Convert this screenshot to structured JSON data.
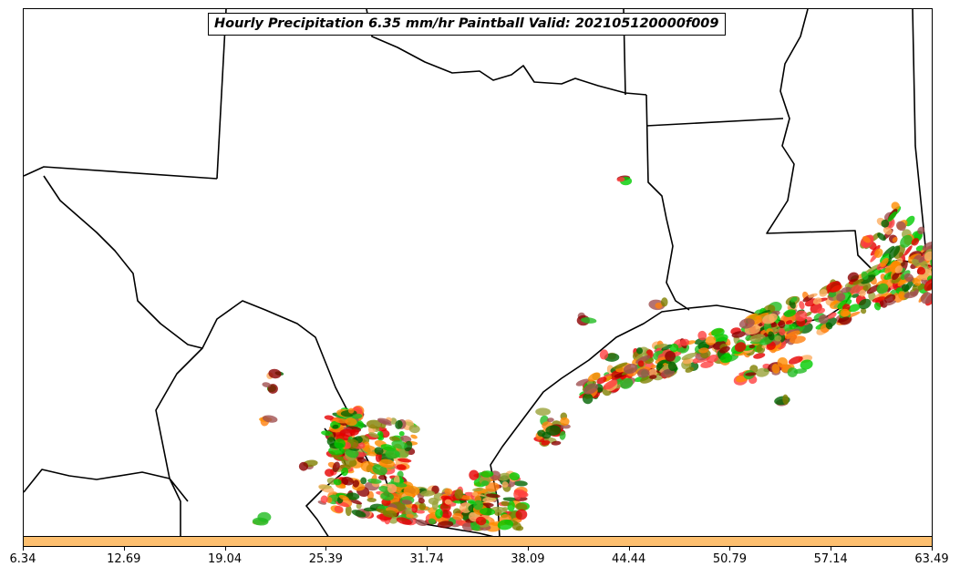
{
  "title": "Hourly Precipitation 6.35 mm/hr Paintball Valid: 202105120000f009",
  "colorbar": {
    "color": "#fdbf6f",
    "ticks": [
      "6.34",
      "12.69",
      "19.04",
      "25.39",
      "31.74",
      "38.09",
      "44.44",
      "50.79",
      "57.14",
      "63.49"
    ]
  },
  "palette": [
    "#8b0000",
    "#a05050",
    "#e60000",
    "#ff4040",
    "#ff8c00",
    "#ff7f0e",
    "#fdae61",
    "#808000",
    "#9aa33a",
    "#00cc00",
    "#22bb22",
    "#006400"
  ]
}
